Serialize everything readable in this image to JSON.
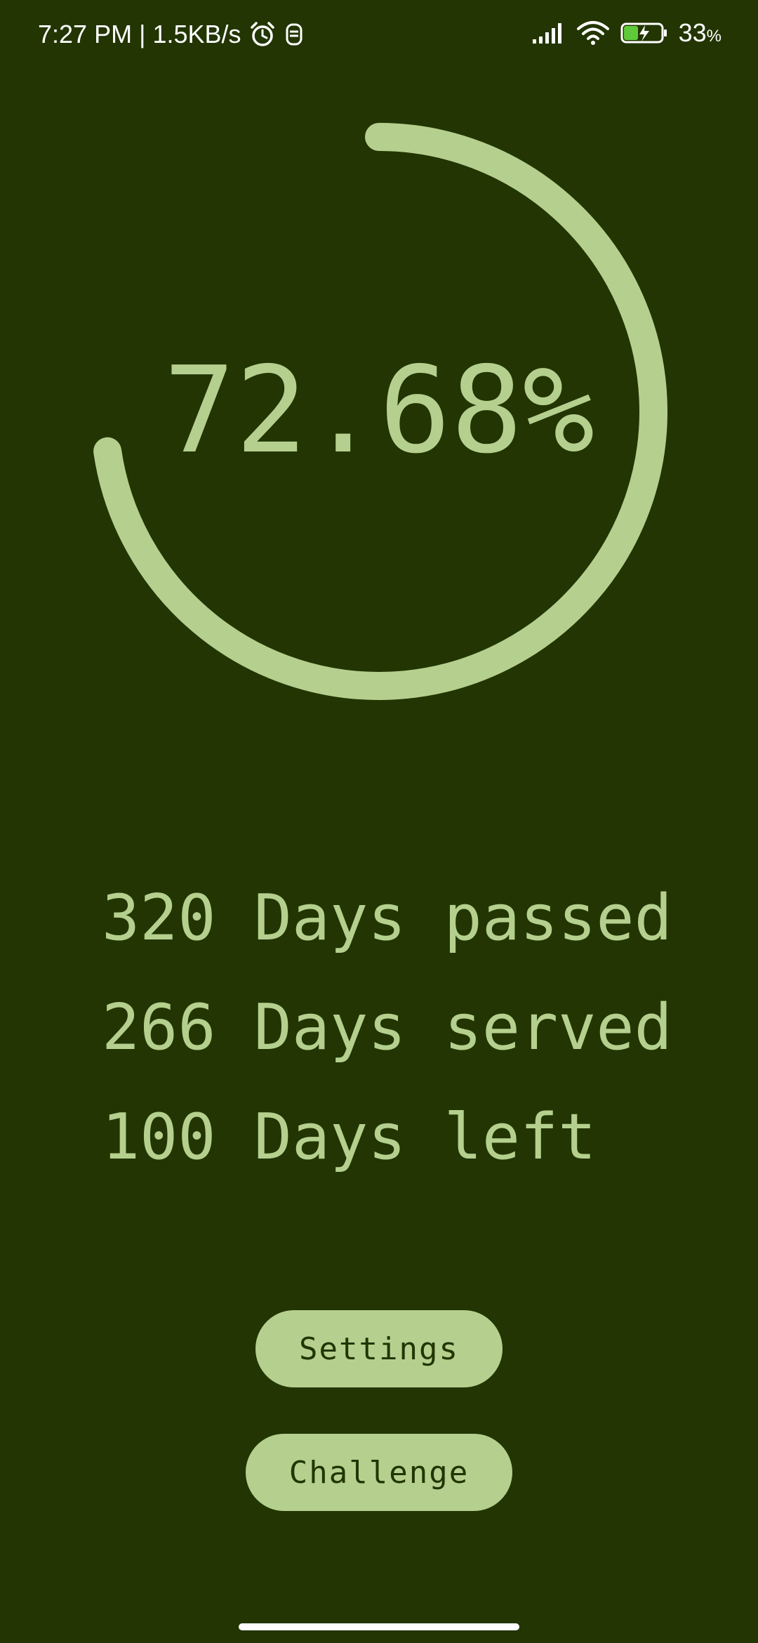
{
  "status_bar": {
    "time": "7:27 PM",
    "separator": "|",
    "network_speed": "1.5KB/s",
    "battery_percent": "33",
    "battery_unit": "%",
    "icons": [
      "alarm-icon",
      "notification-app-icon",
      "signal-icon",
      "wifi-icon",
      "battery-charging-icon"
    ]
  },
  "progress": {
    "label": "72.68%",
    "value_percent": 72.68,
    "ring_color": "#b5d08e",
    "background_color": "#223502"
  },
  "stats": {
    "passed": "320 Days passed",
    "served": "266 Days served",
    "left": "100 Days left"
  },
  "buttons": {
    "settings_label": "Settings",
    "challenge_label": "Challenge"
  }
}
